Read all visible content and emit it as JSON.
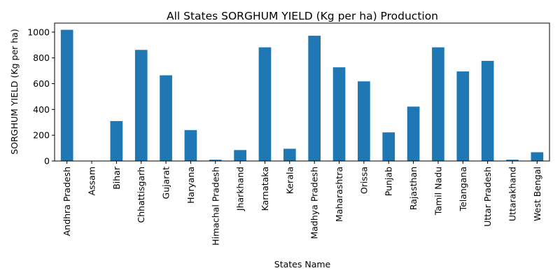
{
  "chart_data": {
    "type": "bar",
    "title": "All States SORGHUM YIELD (Kg per ha) Production",
    "xlabel": "States Name",
    "ylabel": "SORGHUM YIELD (Kg per ha)",
    "ylim": [
      0,
      1070
    ],
    "yticks": [
      0,
      200,
      400,
      600,
      800,
      1000
    ],
    "grid": false,
    "bar_color": "#1f77b4",
    "categories": [
      "Andhra Pradesh",
      "Assam",
      "Bihar",
      "Chhattisgarh",
      "Gujarat",
      "Haryana",
      "Himachal Pradesh",
      "Jharkhand",
      "Karnataka",
      "Kerala",
      "Madhya Pradesh",
      "Maharashtra",
      "Orissa",
      "Punjab",
      "Rajasthan",
      "Tamil Nadu",
      "Telangana",
      "Uttar Pradesh",
      "Uttarakhand",
      "West Bengal"
    ],
    "values": [
      1018,
      0,
      310,
      862,
      665,
      240,
      10,
      85,
      882,
      95,
      972,
      727,
      618,
      222,
      422,
      882,
      695,
      777,
      10,
      68
    ]
  }
}
